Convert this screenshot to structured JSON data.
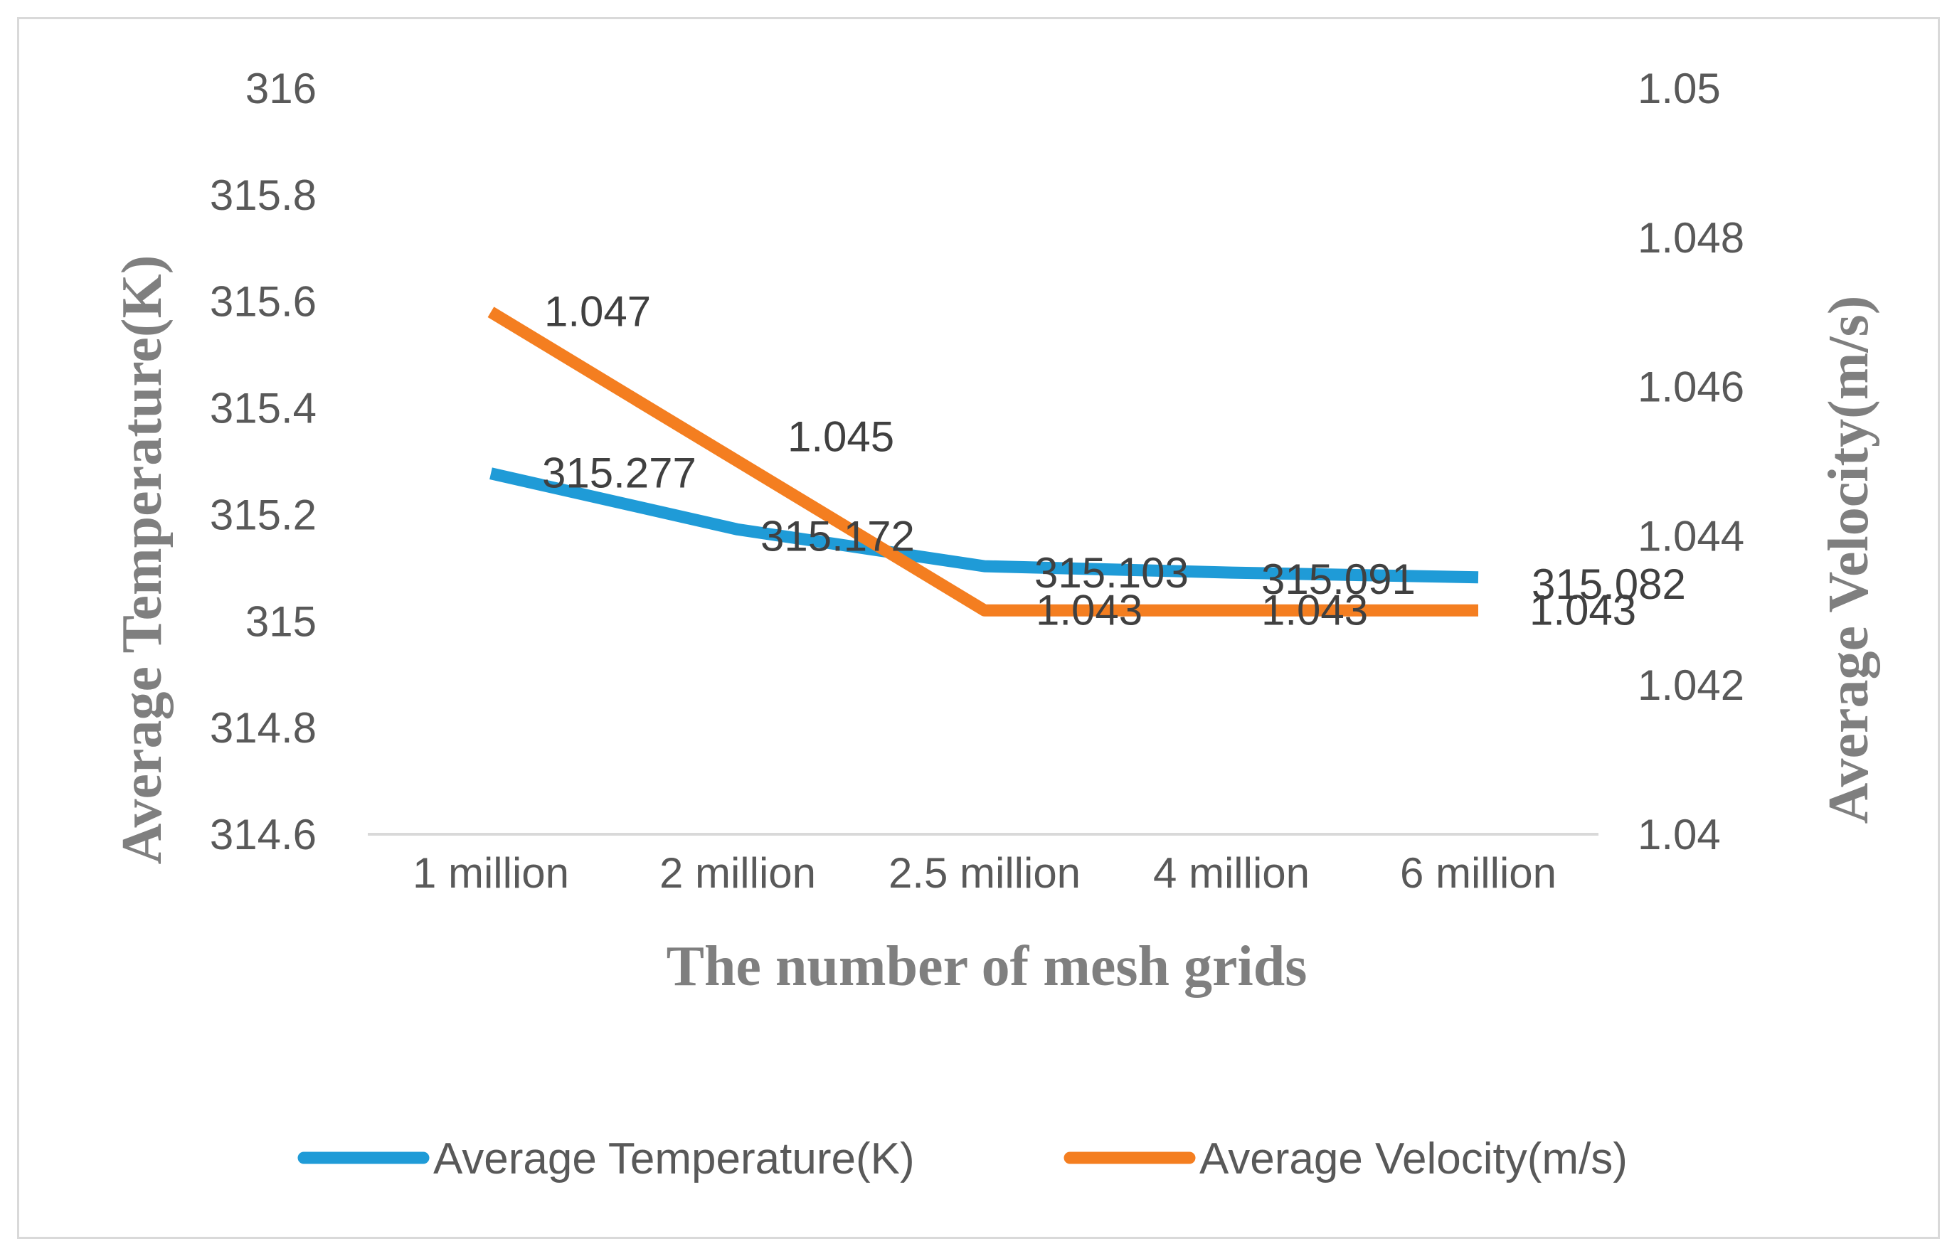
{
  "chart_data": {
    "type": "line",
    "title": "",
    "xlabel": "The number of mesh grids",
    "ylabel": "Average Temperature(K)",
    "ylabel_right": "Average Velocity(m/s)",
    "categories": [
      "1 million",
      "2 million",
      "2.5 million",
      "4 million",
      "6 million"
    ],
    "ylim": [
      314.6,
      316
    ],
    "yticks": [
      "314.6",
      "314.8",
      "315",
      "315.2",
      "315.4",
      "315.6",
      "315.8",
      "316"
    ],
    "ylim_right": [
      1.04,
      1.05
    ],
    "yticks_right": [
      "1.04",
      "1.042",
      "1.044",
      "1.046",
      "1.048",
      "1.05"
    ],
    "grid": false,
    "legend_position": "bottom",
    "series": [
      {
        "name": "Average Temperature(K)",
        "axis": "left",
        "color": "#1f9bd7",
        "values": [
          315.277,
          315.172,
          315.103,
          315.091,
          315.082
        ],
        "labels": [
          "315.277",
          "315.172",
          "315.103",
          "315.091",
          "315.082"
        ]
      },
      {
        "name": "Average Velocity(m/s)",
        "axis": "right",
        "color": "#f47e20",
        "values": [
          1.047,
          1.045,
          1.043,
          1.043,
          1.043
        ],
        "labels": [
          "1.047",
          "1.045",
          "1.043",
          "1.043",
          "1.043"
        ]
      }
    ]
  }
}
